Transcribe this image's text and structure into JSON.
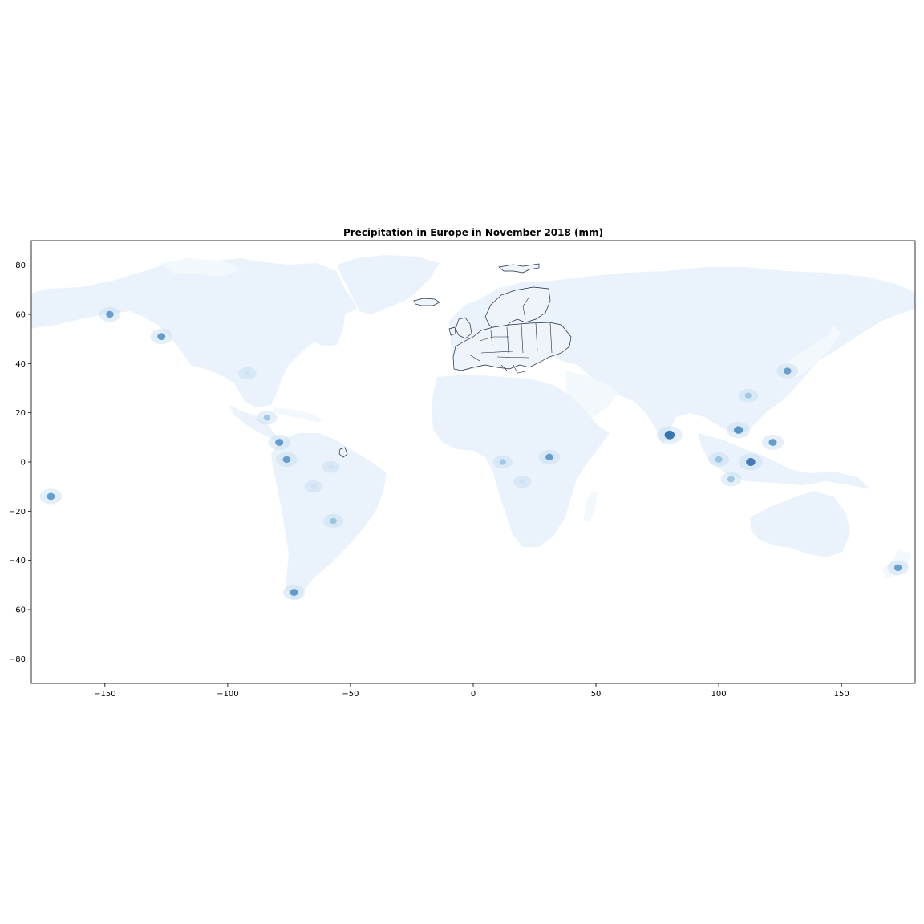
{
  "figure": {
    "title": "Precipitation in Europe in November 2018 (mm)"
  },
  "colors": {
    "land_base": "#eaf3fb",
    "land_light": "#f3f8fd",
    "precip_low": "#c6dbef",
    "precip_mid": "#6baed6",
    "precip_high": "#2171b5",
    "precip_max": "#08519c",
    "border": "#1f2a44"
  },
  "chart_data": {
    "type": "heatmap",
    "title": "Precipitation in Europe in November 2018 (mm)",
    "xlabel": "",
    "ylabel": "",
    "xlim": [
      -180,
      180
    ],
    "ylim": [
      -90,
      90
    ],
    "x_ticks": [
      -150,
      -100,
      -50,
      0,
      50,
      100,
      150
    ],
    "y_ticks": [
      80,
      60,
      40,
      20,
      0,
      -20,
      -40,
      -60,
      -80
    ],
    "x_tick_labels": [
      "−150",
      "−100",
      "−50",
      "0",
      "50",
      "100",
      "150"
    ],
    "y_tick_labels": [
      "80",
      "60",
      "40",
      "20",
      "0",
      "−20",
      "−40",
      "−60",
      "−80"
    ],
    "grid": false,
    "colormap": "Blues",
    "precip_hotspots": [
      {
        "lon": -148,
        "lat": 60,
        "level": 0.55
      },
      {
        "lon": -127,
        "lat": 51,
        "level": 0.6
      },
      {
        "lon": -92,
        "lat": 36,
        "level": 0.3
      },
      {
        "lon": -84,
        "lat": 18,
        "level": 0.45
      },
      {
        "lon": -79,
        "lat": 8,
        "level": 0.6
      },
      {
        "lon": -76,
        "lat": 1,
        "level": 0.55
      },
      {
        "lon": -73,
        "lat": -53,
        "level": 0.6
      },
      {
        "lon": -57,
        "lat": -24,
        "level": 0.45
      },
      {
        "lon": -65,
        "lat": -10,
        "level": 0.3
      },
      {
        "lon": 31,
        "lat": 2,
        "level": 0.55
      },
      {
        "lon": 12,
        "lat": 0,
        "level": 0.4
      },
      {
        "lon": 80,
        "lat": 11,
        "level": 0.85
      },
      {
        "lon": 100,
        "lat": 1,
        "level": 0.5
      },
      {
        "lon": 113,
        "lat": 0,
        "level": 0.75
      },
      {
        "lon": 108,
        "lat": 13,
        "level": 0.7
      },
      {
        "lon": 122,
        "lat": 8,
        "level": 0.6
      },
      {
        "lon": 128,
        "lat": 37,
        "level": 0.55
      },
      {
        "lon": 112,
        "lat": 27,
        "level": 0.4
      },
      {
        "lon": 105,
        "lat": -7,
        "level": 0.5
      },
      {
        "lon": 173,
        "lat": -43,
        "level": 0.55
      },
      {
        "lon": -172,
        "lat": -14,
        "level": 0.6
      },
      {
        "lon": -58,
        "lat": -2,
        "level": 0.25
      },
      {
        "lon": 20,
        "lat": -8,
        "level": 0.3
      }
    ]
  }
}
